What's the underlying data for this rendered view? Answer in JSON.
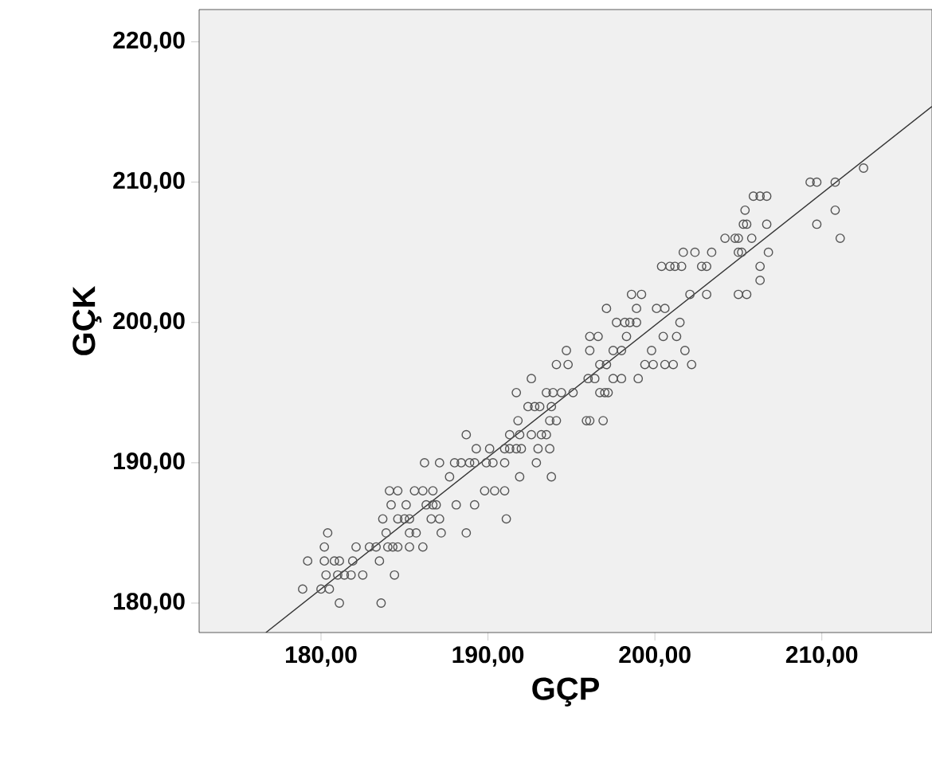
{
  "chart_data": {
    "type": "scatter",
    "xlabel": "GÇP",
    "ylabel": "GÇK",
    "xlim": [
      172.7,
      216.6
    ],
    "ylim": [
      177.9,
      222.3
    ],
    "xticks": [
      {
        "value": 180,
        "label": "180,00"
      },
      {
        "value": 190,
        "label": "190,00"
      },
      {
        "value": 200,
        "label": "200,00"
      },
      {
        "value": 210,
        "label": "210,00"
      }
    ],
    "yticks": [
      {
        "value": 180,
        "label": "180,00"
      },
      {
        "value": 190,
        "label": "190,00"
      },
      {
        "value": 200,
        "label": "200,00"
      },
      {
        "value": 210,
        "label": "210,00"
      },
      {
        "value": 220,
        "label": "220,00"
      }
    ],
    "series": [
      {
        "color": "#555555",
        "marker": "circle",
        "x": [
          212.5,
          209.3,
          209.7,
          210.8,
          205.9,
          206.3,
          206.7,
          205.4,
          210.8,
          205.3,
          205.5,
          206.7,
          209.7,
          204.2,
          204.8,
          205.0,
          205.8,
          211.1,
          201.7,
          202.4,
          203.4,
          205.0,
          205.2,
          206.8,
          200.4,
          200.9,
          201.2,
          201.6,
          202.8,
          203.1,
          206.3,
          206.3,
          198.6,
          199.2,
          202.1,
          203.1,
          205.0,
          205.5,
          197.1,
          198.9,
          200.1,
          200.6,
          197.7,
          198.2,
          198.5,
          198.9,
          201.5,
          196.1,
          196.6,
          198.3,
          200.5,
          201.3,
          194.7,
          196.1,
          197.5,
          198.0,
          199.8,
          201.8,
          194.1,
          194.8,
          196.7,
          197.1,
          199.4,
          199.9,
          200.6,
          201.1,
          202.2,
          192.6,
          196.0,
          196.4,
          197.5,
          198.0,
          199.0,
          191.7,
          193.5,
          193.9,
          194.4,
          195.1,
          196.7,
          197.0,
          197.2,
          192.4,
          192.8,
          193.1,
          193.8,
          191.8,
          193.7,
          194.1,
          195.9,
          196.1,
          196.9,
          188.7,
          191.3,
          191.9,
          192.6,
          193.2,
          193.5,
          189.3,
          190.1,
          191.0,
          191.3,
          191.7,
          192.0,
          193.0,
          193.7,
          186.2,
          187.1,
          188.0,
          188.4,
          188.9,
          189.2,
          189.9,
          190.3,
          191.0,
          192.9,
          187.7,
          191.9,
          193.8,
          184.1,
          184.6,
          185.6,
          186.1,
          186.7,
          189.8,
          190.4,
          191.0,
          184.2,
          185.1,
          186.3,
          186.7,
          186.9,
          188.1,
          189.2,
          183.7,
          184.6,
          185.0,
          185.3,
          186.6,
          187.1,
          191.1,
          180.4,
          183.9,
          185.3,
          185.7,
          187.2,
          188.7,
          180.2,
          182.1,
          182.9,
          183.3,
          184.0,
          184.3,
          184.6,
          185.3,
          186.1,
          179.2,
          180.2,
          180.8,
          181.1,
          181.9,
          183.5,
          180.3,
          181.0,
          181.4,
          181.8,
          182.5,
          184.4,
          178.9,
          180.0,
          180.5,
          181.1,
          183.6
        ],
        "values": [
          211,
          210,
          210,
          210,
          209,
          209,
          209,
          208,
          208,
          207,
          207,
          207,
          207,
          206,
          206,
          206,
          206,
          206,
          205,
          205,
          205,
          205,
          205,
          205,
          204,
          204,
          204,
          204,
          204,
          204,
          204,
          203,
          202,
          202,
          202,
          202,
          202,
          202,
          201,
          201,
          201,
          201,
          200,
          200,
          200,
          200,
          200,
          199,
          199,
          199,
          199,
          199,
          198,
          198,
          198,
          198,
          198,
          198,
          197,
          197,
          197,
          197,
          197,
          197,
          197,
          197,
          197,
          196,
          196,
          196,
          196,
          196,
          196,
          195,
          195,
          195,
          195,
          195,
          195,
          195,
          195,
          194,
          194,
          194,
          194,
          193,
          193,
          193,
          193,
          193,
          193,
          192,
          192,
          192,
          192,
          192,
          192,
          191,
          191,
          191,
          191,
          191,
          191,
          191,
          191,
          190,
          190,
          190,
          190,
          190,
          190,
          190,
          190,
          190,
          190,
          189,
          189,
          189,
          188,
          188,
          188,
          188,
          188,
          188,
          188,
          188,
          187,
          187,
          187,
          187,
          187,
          187,
          187,
          186,
          186,
          186,
          186,
          186,
          186,
          186,
          185,
          185,
          185,
          185,
          185,
          185,
          184,
          184,
          184,
          184,
          184,
          184,
          184,
          184,
          184,
          183,
          183,
          183,
          183,
          183,
          183,
          182,
          182,
          182,
          182,
          182,
          182,
          181,
          181,
          181,
          180,
          180
        ]
      },
      {
        "type": "line",
        "marker": "none",
        "color": "#333333",
        "x": [
          176.7,
          216.6
        ],
        "values": [
          177.9,
          215.4
        ]
      }
    ]
  }
}
